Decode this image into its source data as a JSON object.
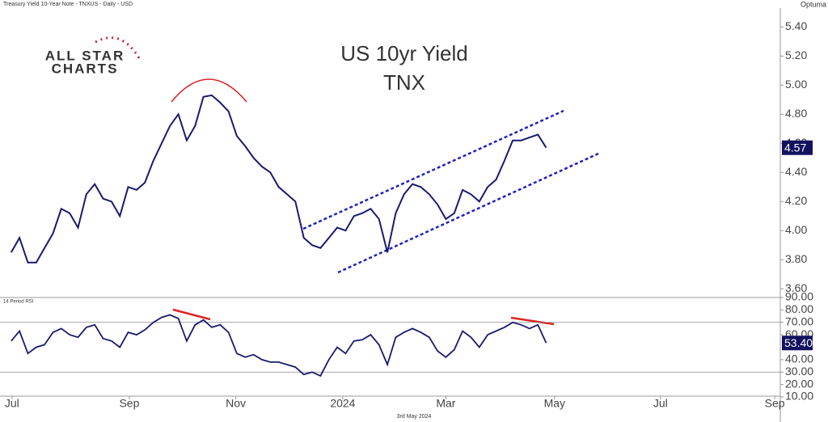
{
  "header": "Treasury Yield 10-Year Note - TNXUS - Daily - USD",
  "brand": "Optuma",
  "logo": {
    "line1": "ALL STAR",
    "line2": "CHARTS"
  },
  "footer": "3rd May 2024",
  "chart_data": [
    {
      "type": "line",
      "title": "US 10yr Yield",
      "subtitle": "TNX",
      "color": "#1a1a6e",
      "x": [
        0,
        3,
        6,
        9,
        12,
        15,
        18,
        21,
        24,
        27,
        30,
        33,
        36,
        39,
        42,
        45,
        48,
        51,
        54,
        57,
        60,
        63,
        66,
        69,
        72,
        75,
        78,
        81,
        84,
        87,
        90,
        93,
        96,
        99,
        102,
        105,
        108,
        111,
        114,
        117,
        120,
        123,
        126,
        129,
        132,
        135,
        138,
        141,
        144,
        147,
        150,
        153,
        156,
        159,
        162,
        165,
        168,
        171,
        174,
        177,
        180,
        183,
        186,
        189,
        192
      ],
      "values": [
        3.85,
        3.95,
        3.78,
        3.78,
        3.88,
        3.98,
        4.15,
        4.12,
        4.02,
        4.25,
        4.32,
        4.22,
        4.2,
        4.1,
        4.3,
        4.28,
        4.33,
        4.48,
        4.6,
        4.72,
        4.8,
        4.62,
        4.72,
        4.92,
        4.93,
        4.88,
        4.82,
        4.65,
        4.58,
        4.5,
        4.44,
        4.4,
        4.3,
        4.25,
        4.2,
        3.95,
        3.9,
        3.88,
        3.95,
        4.02,
        4.0,
        4.1,
        4.12,
        4.15,
        4.08,
        3.85,
        4.12,
        4.25,
        4.32,
        4.3,
        4.25,
        4.18,
        4.08,
        4.12,
        4.28,
        4.25,
        4.2,
        4.3,
        4.35,
        4.48,
        4.62,
        4.62,
        4.64,
        4.66,
        4.57
      ],
      "last_label": "4.57",
      "xlim": [
        -4,
        276
      ],
      "xticks": [
        {
          "value": 0.3,
          "label": "Jul"
        },
        {
          "value": 42.4,
          "label": "Sep"
        },
        {
          "value": 80.6,
          "label": "Nov"
        },
        {
          "value": 119,
          "label": "2024"
        },
        {
          "value": 156,
          "label": "Mar"
        },
        {
          "value": 195,
          "label": "May"
        },
        {
          "value": 233,
          "label": "Jul"
        },
        {
          "value": 274,
          "label": "Sep"
        }
      ],
      "ylim": [
        3.54,
        5.53
      ],
      "yticks": [
        {
          "value": 3.6,
          "label": "3.60"
        },
        {
          "value": 3.8,
          "label": "3.80"
        },
        {
          "value": 4.0,
          "label": "4.00"
        },
        {
          "value": 4.2,
          "label": "4.20"
        },
        {
          "value": 4.4,
          "label": "4.40"
        },
        {
          "value": 4.6,
          "label": "4.60"
        },
        {
          "value": 4.8,
          "label": "4.80"
        },
        {
          "value": 5.0,
          "label": "5.00"
        },
        {
          "value": 5.2,
          "label": "5.20"
        },
        {
          "value": 5.4,
          "label": "5.40"
        }
      ]
    },
    {
      "type": "line",
      "title": "14 Period RSI",
      "color": "#1a1a6e",
      "x": [
        0,
        3,
        6,
        9,
        12,
        15,
        18,
        21,
        24,
        27,
        30,
        33,
        36,
        39,
        42,
        45,
        48,
        51,
        54,
        57,
        60,
        63,
        66,
        69,
        72,
        75,
        78,
        81,
        84,
        87,
        90,
        93,
        96,
        99,
        102,
        105,
        108,
        111,
        114,
        117,
        120,
        123,
        126,
        129,
        132,
        135,
        138,
        141,
        144,
        147,
        150,
        153,
        156,
        159,
        162,
        165,
        168,
        171,
        174,
        177,
        180,
        183,
        186,
        189,
        192
      ],
      "values": [
        55,
        63,
        45,
        50,
        52,
        62,
        65,
        60,
        58,
        66,
        68,
        57,
        55,
        50,
        62,
        60,
        64,
        70,
        74,
        76,
        73,
        55,
        68,
        72,
        66,
        68,
        62,
        45,
        42,
        44,
        40,
        38,
        38,
        36,
        34,
        28,
        30,
        27,
        40,
        50,
        45,
        55,
        56,
        60,
        52,
        36,
        58,
        62,
        65,
        62,
        58,
        47,
        42,
        48,
        63,
        58,
        50,
        60,
        63,
        66,
        70,
        68,
        65,
        68,
        53.4
      ],
      "last_label": "53.40",
      "xlim": [
        -4,
        276
      ],
      "ylim": [
        10,
        90
      ],
      "yticks": [
        {
          "value": 10,
          "label": "10.00"
        },
        {
          "value": 20,
          "label": "20.00"
        },
        {
          "value": 30,
          "label": "30.00"
        },
        {
          "value": 40,
          "label": "40.00"
        },
        {
          "value": 60,
          "label": "60.00"
        },
        {
          "value": 70,
          "label": "70.00"
        },
        {
          "value": 80,
          "label": "80.00"
        },
        {
          "value": 90,
          "label": "90.00"
        }
      ],
      "grid_values": [
        30,
        70
      ]
    }
  ]
}
